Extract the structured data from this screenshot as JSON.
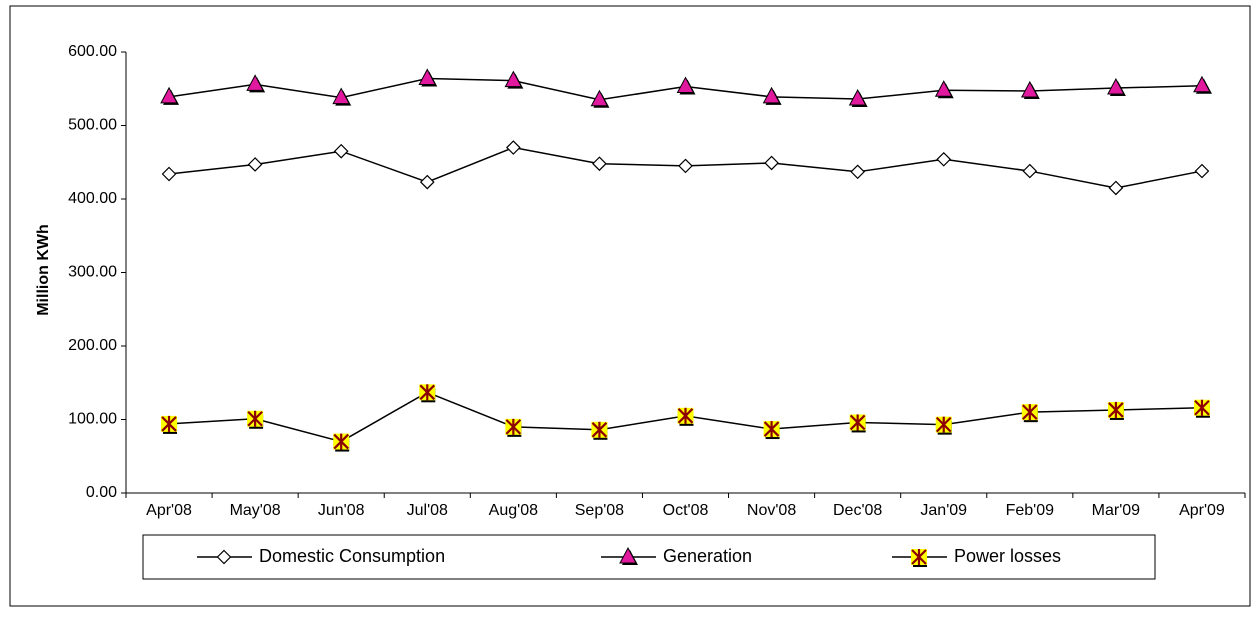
{
  "chart_data": {
    "type": "line",
    "title": "",
    "xlabel": "",
    "ylabel": "Million KWh",
    "ylim": [
      0,
      600
    ],
    "yticks": [
      "0.00",
      "100.00",
      "200.00",
      "300.00",
      "400.00",
      "500.00",
      "600.00"
    ],
    "grid": false,
    "legend_position": "bottom",
    "categories": [
      "Apr'08",
      "May'08",
      "Jun'08",
      "Jul'08",
      "Aug'08",
      "Sep'08",
      "Oct'08",
      "Nov'08",
      "Dec'08",
      "Jan'09",
      "Feb'09",
      "Mar'09",
      "Apr'09"
    ],
    "series": [
      {
        "name": "Domestic Consumption",
        "marker": "diamond",
        "color": "#000000",
        "fill": "#ffffff",
        "values": [
          434,
          447,
          465,
          423,
          470,
          448,
          445,
          449,
          437,
          454,
          438,
          415,
          438
        ]
      },
      {
        "name": "Generation",
        "marker": "triangle",
        "color": "#000000",
        "fill": "#e0199e",
        "values": [
          539,
          556,
          538,
          564,
          561,
          535,
          553,
          539,
          536,
          548,
          547,
          551,
          554
        ]
      },
      {
        "name": "Power losses",
        "marker": "asterisk",
        "color": "#000000",
        "fill": "#ffff00",
        "values": [
          94,
          101,
          70,
          137,
          90,
          86,
          105,
          87,
          96,
          93,
          110,
          113,
          116
        ]
      }
    ]
  }
}
